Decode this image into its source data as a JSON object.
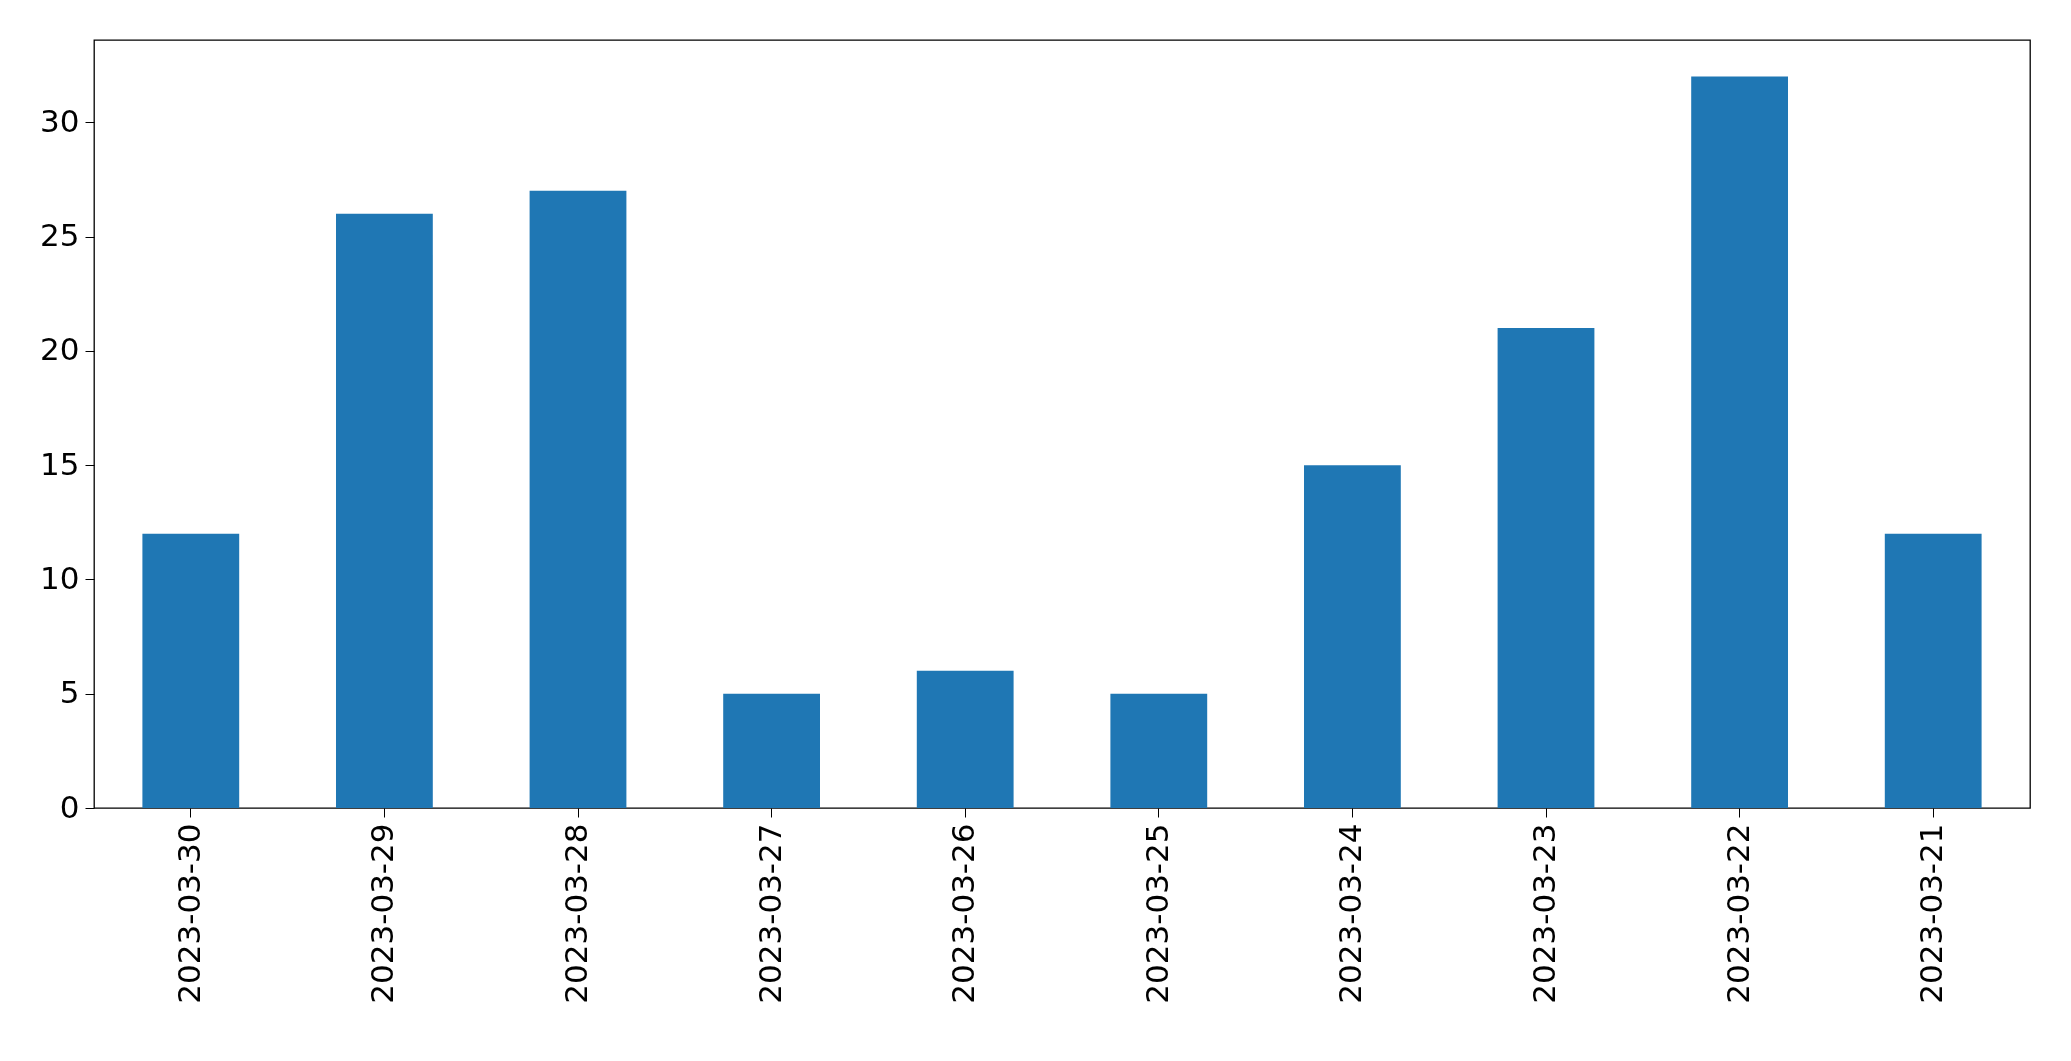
{
  "chart_data": {
    "type": "bar",
    "categories": [
      "2023-03-30",
      "2023-03-29",
      "2023-03-28",
      "2023-03-27",
      "2023-03-26",
      "2023-03-25",
      "2023-03-24",
      "2023-03-23",
      "2023-03-22",
      "2023-03-21"
    ],
    "values": [
      12,
      26,
      27,
      5,
      6,
      5,
      15,
      21,
      32,
      12
    ],
    "color": "#1f77b4",
    "ylim": [
      0,
      33.6
    ],
    "yticks": [
      0,
      5,
      10,
      15,
      20,
      25,
      30
    ],
    "grid": false
  }
}
